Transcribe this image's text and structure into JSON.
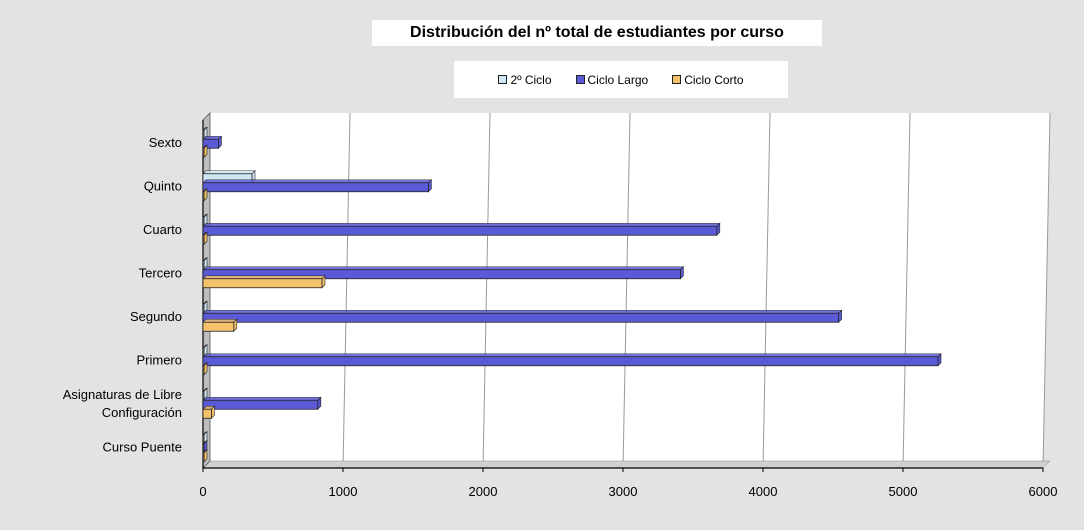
{
  "chart_data": {
    "type": "bar",
    "orientation": "horizontal",
    "title": "Distribución del nº total de estudiantes por curso",
    "categories": [
      "Sexto",
      "Quinto",
      "Cuarto",
      "Tercero",
      "Segundo",
      "Primero",
      "Asignaturas de Libre Configuración",
      "Curso Puente"
    ],
    "category_lines": [
      [
        "Sexto"
      ],
      [
        "Quinto"
      ],
      [
        "Cuarto"
      ],
      [
        "Tercero"
      ],
      [
        "Segundo"
      ],
      [
        "Primero"
      ],
      [
        "Asignaturas de Libre",
        "Configuración"
      ],
      [
        "Curso Puente"
      ]
    ],
    "series": [
      {
        "name": "2º Ciclo",
        "color": "#cfe6f5",
        "values": [
          0,
          350,
          0,
          0,
          0,
          0,
          0,
          0
        ]
      },
      {
        "name": "Ciclo Largo",
        "color": "#5a5ad6",
        "values": [
          110,
          1610,
          3670,
          3410,
          4540,
          5250,
          820,
          0
        ]
      },
      {
        "name": "Ciclo Corto",
        "color": "#f4c26b",
        "values": [
          0,
          0,
          0,
          850,
          220,
          0,
          60,
          0
        ]
      }
    ],
    "xlim": [
      0,
      6000
    ],
    "x_ticks": [
      "0",
      "1000",
      "2000",
      "3000",
      "4000",
      "5000",
      "6000"
    ],
    "grid": true,
    "legend_position": "top"
  }
}
